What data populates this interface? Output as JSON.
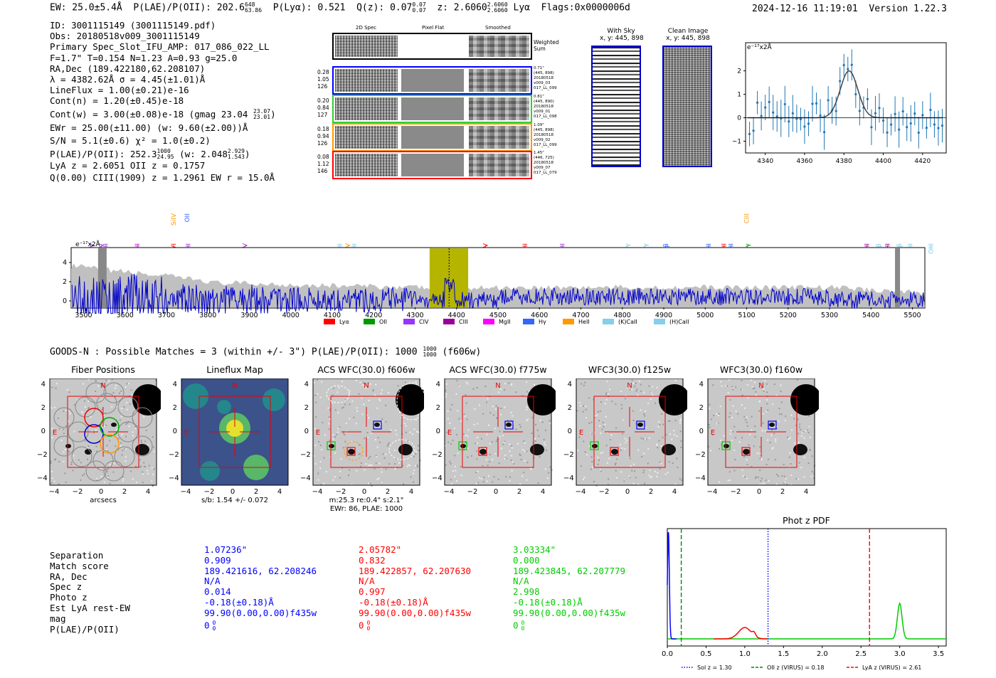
{
  "header": {
    "ew": "EW: 25.0±5.4Å",
    "plae": "P(LAE)/P(OII): 202.6",
    "plae_hi": "648",
    "plae_lo": "63.86",
    "plya": "P(Lyα): 0.521",
    "qz": "Q(z): 0.07",
    "qz_hi": "0.07",
    "qz_lo": "0.07",
    "z": "z: 2.6060",
    "z_hi": "2.6060",
    "z_lo": "2.6060",
    "line": "Lyα",
    "flags": "Flags:0x0000006d",
    "datetime": "2024-12-16 11:19:01",
    "version": "Version 1.22.3"
  },
  "info": {
    "id": "ID: 3001115149 (3001115149.pdf)",
    "obs": "Obs: 20180518v009_3001115149",
    "primary": "Primary Spec_Slot_IFU_AMP: 017_086_022_LL",
    "fit": "F=1.7\"  T=0.154  N=1.23  A=0.93  g=25.0",
    "radec": "RA,Dec (189.422180,62.208107)",
    "lambda": "λ = 4382.62Å  σ = 4.45(±1.01)Å",
    "lineflux": "LineFlux = 1.00(±0.21)e-16",
    "contn": "Cont(n) = 1.20(±0.45)e-18",
    "contw": "Cont(w) = 3.00(±0.08)e-18 (gmag 23.04",
    "contw_hi": "23.07",
    "contw_lo": "23.01",
    "ewr": "EWr = 25.00(±11.00) (w: 9.60(±2.00))Å",
    "sn": "S/N = 5.1(±0.6)  χ² = 1.0(±0.2)",
    "plae": "P(LAE)/P(OII): 252.3",
    "plae_hi": "1000",
    "plae_lo": "24.95",
    "plae_w": "(w: 2.048",
    "plae_w_hi": "2.929",
    "plae_w_lo": "1.543",
    "lya_z": "LyA z = 2.6051  OII z = 0.1757",
    "ciii": "Q(0.00) CIII(1909) z = 1.2961  EW r = 15.0Å"
  },
  "spec2d": {
    "col1": "2D Spec",
    "col2": "Pixel Flat",
    "col3": "Smoothed",
    "weighted": "Weighted",
    "sum": "Sum",
    "rows": [
      {
        "left": [
          "0.28",
          "1.05",
          "126"
        ],
        "right": [
          "0.71\"",
          "(445, 898)",
          "20180518",
          "v009_03",
          "017_LL_099"
        ],
        "color": "#0000ff"
      },
      {
        "left": [
          "0.20",
          "0.84",
          "127"
        ],
        "right": [
          "0.81\"",
          "(445, 890)",
          "20180518",
          "v009_01",
          "017_LL_098"
        ],
        "color": "#33cc33"
      },
      {
        "left": [
          "0.18",
          "0.94",
          "126"
        ],
        "right": [
          "1.09\"",
          "(445, 898)",
          "20180518",
          "v009_02",
          "017_LL_099"
        ],
        "color": "#ff9900"
      },
      {
        "left": [
          "0.08",
          "1.12",
          "146"
        ],
        "right": [
          "1.45\"",
          "(446, 725)",
          "20180518",
          "v009_07",
          "017_LL_079"
        ],
        "color": "#ff0000"
      }
    ]
  },
  "cutouts": {
    "withsky": "With Sky",
    "withsky_xy": "x, y: 445, 898",
    "clean": "Clean Image",
    "clean_xy": "x, y: 445, 898"
  },
  "zoom": {
    "unit": "e⁻¹⁷x2Å",
    "x_ticks": [
      "4340",
      "4360",
      "4380",
      "4400",
      "4420"
    ],
    "y_ticks": [
      "2",
      "1",
      "0",
      "−1"
    ]
  },
  "fullspec": {
    "unit": "e⁻¹⁷x2Å",
    "y_ticks": [
      "4",
      "2",
      "0"
    ],
    "x_ticks": [
      "3500",
      "3600",
      "3700",
      "3800",
      "3900",
      "4000",
      "4100",
      "4200",
      "4300",
      "4400",
      "4500",
      "4600",
      "4700",
      "4800",
      "4900",
      "5000",
      "5100",
      "5200",
      "5300",
      "5400",
      "5500"
    ],
    "lines": [
      {
        "label": "NV",
        "w": 3520,
        "c": "#9933cc",
        "row": 1
      },
      {
        "label": "CIV",
        "w": 3543,
        "c": "#9933cc",
        "row": 1
      },
      {
        "label": "SiII",
        "w": 3553,
        "c": "#9933cc",
        "row": 1
      },
      {
        "label": "CII",
        "w": 3630,
        "c": "#cc00cc",
        "row": 1
      },
      {
        "label": "SiIV",
        "w": 3717,
        "c": "#ff9900",
        "row": 0
      },
      {
        "label": "OVI",
        "w": 3717,
        "c": "#ff0000",
        "row": 1
      },
      {
        "label": "OII",
        "w": 3750,
        "c": "#3366ff",
        "row": 0
      },
      {
        "label": "HeII",
        "w": 3752,
        "c": "#9933cc",
        "row": 1
      },
      {
        "label": "SiIV",
        "w": 3890,
        "c": "#9933cc",
        "row": 1
      },
      {
        "label": "OIII",
        "w": 4118,
        "c": "#87ceeb",
        "row": 1
      },
      {
        "label": "CIV",
        "w": 4138,
        "c": "#ff9900",
        "row": 1
      },
      {
        "label": "OIII",
        "w": 4153,
        "c": "#87ceeb",
        "row": 1
      },
      {
        "label": "NV",
        "w": 4470,
        "c": "#ff0000",
        "row": 1
      },
      {
        "label": "SiII",
        "w": 4565,
        "c": "#ff0000",
        "row": 1
      },
      {
        "label": "HeII",
        "w": 4655,
        "c": "#9933cc",
        "row": 1
      },
      {
        "label": "Hγ",
        "w": 4812,
        "c": "#87ceeb",
        "row": 1
      },
      {
        "label": "Hγ",
        "w": 4855,
        "c": "#87ceeb",
        "row": 1
      },
      {
        "label": "Hβ",
        "w": 4905,
        "c": "#3366ff",
        "row": 1
      },
      {
        "label": "OIII",
        "w": 5008,
        "c": "#3366ff",
        "row": 1
      },
      {
        "label": "SiII",
        "w": 5045,
        "c": "#ff0000",
        "row": 1
      },
      {
        "label": "OIII",
        "w": 5062,
        "c": "#3366ff",
        "row": 1
      },
      {
        "label": "CIII",
        "w": 5100,
        "c": "#ff9900",
        "row": 0
      },
      {
        "label": "Hγ",
        "w": 5102,
        "c": "#009900",
        "row": 1
      },
      {
        "label": "CII",
        "w": 5390,
        "c": "#990099",
        "row": 1
      },
      {
        "label": "Hβ",
        "w": 5418,
        "c": "#87ceeb",
        "row": 1
      },
      {
        "label": "CIII",
        "w": 5440,
        "c": "#990099",
        "row": 1
      },
      {
        "label": "Hβ",
        "w": 5468,
        "c": "#87ceeb",
        "row": 1
      },
      {
        "label": "OIII",
        "w": 5495,
        "c": "#87ceeb",
        "row": 1
      },
      {
        "label": "OIII",
        "w": 5545,
        "c": "#87ceeb",
        "row": 1
      }
    ],
    "legend": [
      {
        "label": "Lyα",
        "c": "#ff0000"
      },
      {
        "label": "OII",
        "c": "#009900"
      },
      {
        "label": "CIV",
        "c": "#9933ff"
      },
      {
        "label": "CIII",
        "c": "#990099"
      },
      {
        "label": "MgII",
        "c": "#ff00ff"
      },
      {
        "label": "Hγ",
        "c": "#3366ff"
      },
      {
        "label": "HeII",
        "c": "#ff9900"
      },
      {
        "label": "(K)CaII",
        "c": "#87ceeb"
      },
      {
        "label": "(H)CaII",
        "c": "#87ceeb"
      }
    ]
  },
  "goods": {
    "line": "GOODS-N : Possible Matches = 3 (within +/- 3\")  P(LAE)/P(OII): 1000",
    "hi": "1000",
    "lo": "1000",
    "filter": "(f606w)"
  },
  "panels": [
    {
      "title": "Fiber Positions",
      "xlabel": "arcsecs"
    },
    {
      "title": "Lineflux Map",
      "xlabel": "s/b: 1.54 +/- 0.072"
    },
    {
      "title": "ACS WFC(30.0) f606w",
      "xlabel": "m:25.3  re:0.4\"  s:2.1\"",
      "xlabel2": "EWr: 86, PLAE: 1000"
    },
    {
      "title": "ACS WFC(30.0) f775w"
    },
    {
      "title": "WFC3(30.0) f125w"
    },
    {
      "title": "WFC3(30.0) f160w"
    }
  ],
  "panel_axis": {
    "y_ticks": [
      "4",
      "2",
      "0",
      "−2",
      "−4"
    ],
    "x_ticks": [
      "−4",
      "−2",
      "0",
      "2",
      "4"
    ],
    "north": "N",
    "east": "E"
  },
  "matches": {
    "labels": [
      "Separation",
      "Match score",
      "RA, Dec",
      "Spec z",
      "Photo z",
      "Est LyA rest-EW",
      "mag",
      "P(LAE)/P(OII)"
    ],
    "cols": [
      {
        "color": "#0000ff",
        "sep": "1.07236\"",
        "score": "0.909",
        "radec": "189.421616, 62.208246",
        "specz": "N/A",
        "photoz": "0.014",
        "ew": "-0.18(±0.18)Å",
        "mag": "99.90(0.00,0.00)f435w",
        "plae": "0"
      },
      {
        "color": "#ff0000",
        "sep": "2.05782\"",
        "score": "0.832",
        "radec": "189.422857, 62.207630",
        "specz": "N/A",
        "photoz": "0.997",
        "ew": "-0.18(±0.18)Å",
        "mag": "99.90(0.00,0.00)f435w",
        "plae": "0"
      },
      {
        "color": "#00cc00",
        "sep": "3.03334\"",
        "score": "0.000",
        "radec": "189.423845, 62.207779",
        "specz": "N/A",
        "photoz": "2.998",
        "ew": "-0.18(±0.18)Å",
        "mag": "99.90(0.00,0.00)f435w",
        "plae": "0"
      }
    ],
    "plae_sub": "0"
  },
  "chart_data": [
    {
      "type": "line",
      "title": "",
      "ylabel": "e⁻¹⁷x2Å",
      "xlim": [
        4330,
        4432
      ],
      "ylim": [
        -1.5,
        3.2
      ],
      "fit": {
        "center": 4382.6,
        "sigma": 4.45,
        "amp": 2.0
      },
      "x_ticks": [
        4340,
        4360,
        4380,
        4400,
        4420
      ]
    },
    {
      "type": "line",
      "title": "Phot z PDF",
      "xlim": [
        0,
        3.6
      ],
      "x_ticks": [
        "0.0",
        "0.5",
        "1.0",
        "1.5",
        "2.0",
        "2.5",
        "3.0",
        "3.5"
      ],
      "series": [
        {
          "name": "blue",
          "color": "#0000ff",
          "peak_x": 0.014
        },
        {
          "name": "red",
          "color": "#ff0000",
          "peak_x": 0.997
        },
        {
          "name": "green",
          "color": "#00cc00",
          "peak_x": 2.998
        }
      ],
      "vlines": [
        {
          "label": "Sol z = 1.30",
          "x": 1.3,
          "color": "#0000ff",
          "style": "dotted"
        },
        {
          "label": "OII z (VIRUS) = 0.18",
          "x": 0.18,
          "color": "#008800",
          "style": "dashed"
        },
        {
          "label": "LyA z (VIRUS) = 2.61",
          "x": 2.61,
          "color": "#ff0000",
          "style": "dashed"
        }
      ]
    }
  ]
}
